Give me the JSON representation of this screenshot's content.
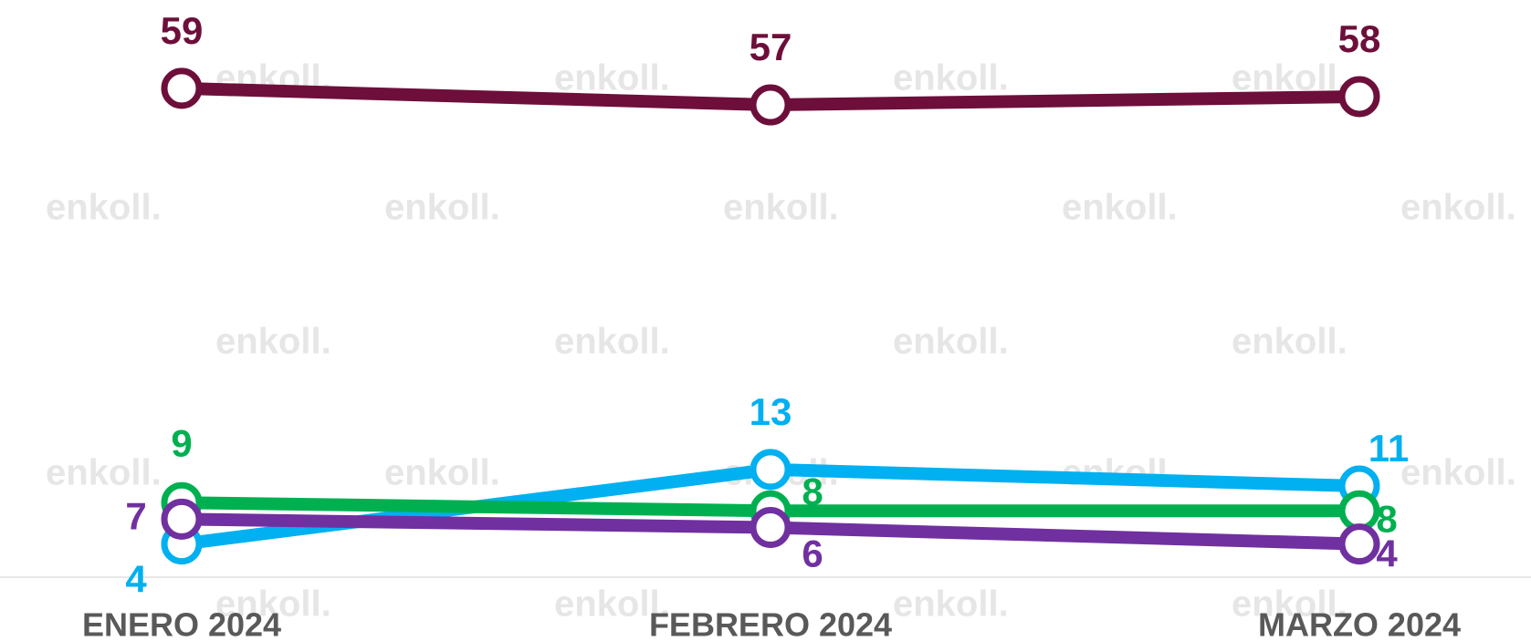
{
  "watermark": "enkoll.",
  "chart_data": {
    "type": "line",
    "categories": [
      "ENERO 2024",
      "FEBRERO 2024",
      "MARZO 2024"
    ],
    "ylim": [
      0,
      69
    ],
    "series": [
      {
        "color": "#6d0f3a",
        "values": [
          59,
          57,
          58
        ]
      },
      {
        "color": "#00b0f0",
        "values": [
          4,
          13,
          11
        ]
      },
      {
        "color": "#00b050",
        "values": [
          9,
          8,
          8
        ]
      },
      {
        "color": "#7030a0",
        "values": [
          7,
          6,
          4
        ]
      }
    ]
  }
}
